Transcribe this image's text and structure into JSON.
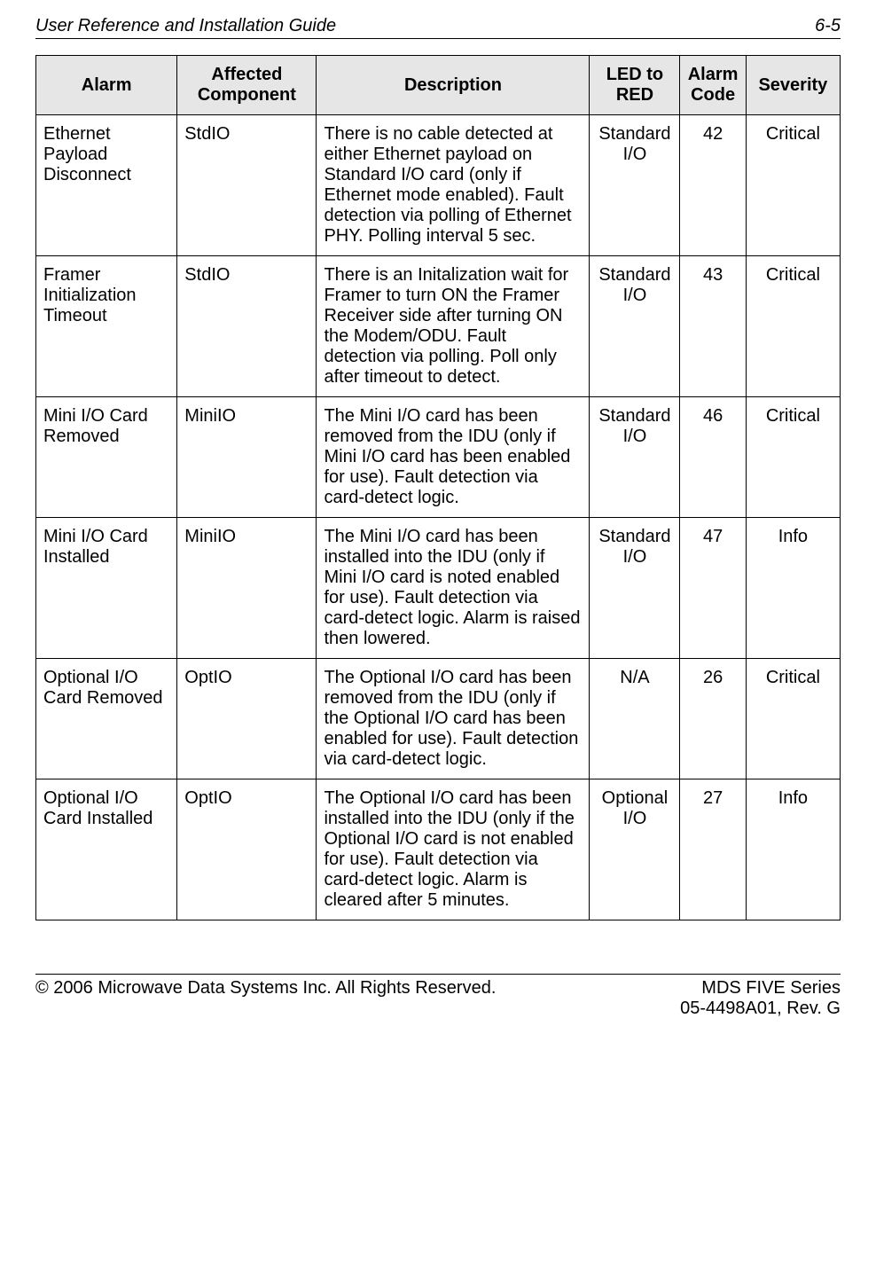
{
  "header": {
    "left": "User Reference and Installation Guide",
    "right": "6-5"
  },
  "table": {
    "columns": [
      "Alarm",
      "Affected Component",
      "Description",
      "LED to RED",
      "Alarm Code",
      "Severity"
    ],
    "rows": [
      {
        "alarm": "Ethernet Payload Disconnect",
        "component": "StdIO",
        "description": "There is no cable detected at either Ethernet payload on Standard I/O card (only if Ethernet mode enabled). Fault detection via polling of Ethernet PHY. Polling interval 5 sec.",
        "led": "Standard I/O",
        "code": "42",
        "severity": "Critical"
      },
      {
        "alarm": "Framer Initialization Timeout",
        "component": "StdIO",
        "description": "There is an Initalization wait for Framer to turn ON the Framer Receiver side after turning ON the Modem/ODU. Fault detection via polling. Poll only after timeout to detect.",
        "led": "Standard I/O",
        "code": "43",
        "severity": "Critical"
      },
      {
        "alarm": "Mini I/O Card Removed",
        "component": "MiniIO",
        "description": "The Mini I/O card has been removed from the IDU (only if Mini I/O card has been enabled for use). Fault detection via card-detect logic.",
        "led": "Standard I/O",
        "code": "46",
        "severity": "Critical"
      },
      {
        "alarm": "Mini I/O Card Installed",
        "component": "MiniIO",
        "description": "The Mini I/O card has been installed into the IDU (only if Mini I/O card is noted enabled for use). Fault detection via card-detect logic. Alarm is raised then lowered.",
        "led": "Standard I/O",
        "code": "47",
        "severity": "Info"
      },
      {
        "alarm": "Optional I/O Card Removed",
        "component": "OptIO",
        "description": "The Optional I/O card has been removed from the IDU (only if the Optional I/O card has been enabled for use). Fault detection via card-detect logic.",
        "led": "N/A",
        "code": "26",
        "severity": "Critical"
      },
      {
        "alarm": "Optional I/O Card Installed",
        "component": "OptIO",
        "description": "The Optional I/O card has been installed into the IDU (only if the Optional I/O card is not enabled for use). Fault detection via card-detect logic. Alarm is cleared after 5 minutes.",
        "led": "Optional I/O",
        "code": "27",
        "severity": "Info"
      }
    ]
  },
  "footer": {
    "left": "© 2006 Microwave Data Systems Inc.  All Rights Reserved.",
    "right1": "MDS FIVE Series",
    "right2": "05-4498A01, Rev. G"
  }
}
